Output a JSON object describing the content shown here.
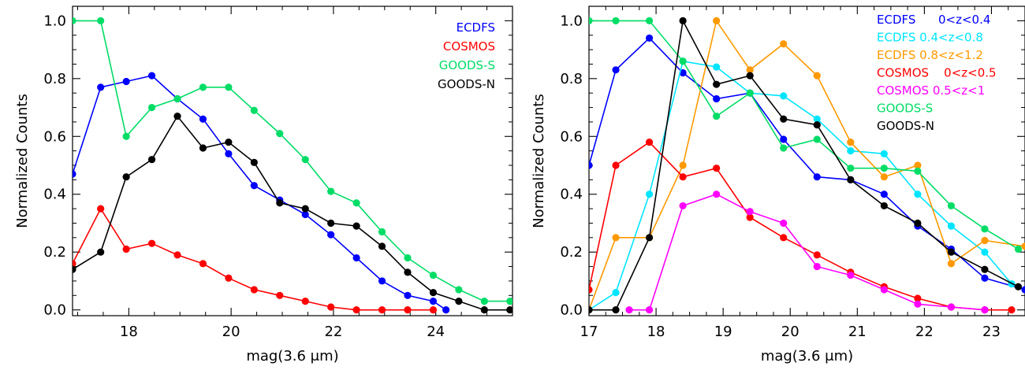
{
  "chart_data": [
    {
      "type": "line",
      "xlabel": "mag(3.6 μm)",
      "ylabel": "Normalized Counts",
      "xlim": [
        16.9,
        25.5
      ],
      "ylim": [
        -0.02,
        1.05
      ],
      "xticks": [
        18,
        20,
        22,
        24
      ],
      "xtick_labels": [
        "18",
        "20",
        "22",
        "24"
      ],
      "yticks": [
        0.0,
        0.2,
        0.4,
        0.6,
        0.8,
        1.0
      ],
      "ytick_labels": [
        "0.0",
        "0.2",
        "0.4",
        "0.6",
        "0.8",
        "1.0"
      ],
      "grid": false,
      "legend_position": "top-right",
      "series": [
        {
          "name": "ECDFS",
          "color": "#0000ff",
          "x": [
            16.9,
            17.45,
            17.95,
            18.45,
            18.95,
            19.45,
            19.95,
            20.45,
            20.95,
            21.45,
            21.95,
            22.45,
            22.95,
            23.45,
            23.95,
            24.2
          ],
          "y": [
            0.47,
            0.77,
            0.79,
            0.81,
            0.73,
            0.66,
            0.54,
            0.43,
            0.38,
            0.33,
            0.26,
            0.18,
            0.1,
            0.05,
            0.03,
            0.0
          ]
        },
        {
          "name": "COSMOS",
          "color": "#ff0000",
          "x": [
            16.9,
            17.45,
            17.95,
            18.45,
            18.95,
            19.45,
            19.95,
            20.45,
            20.95,
            21.45,
            21.95,
            22.45,
            22.95,
            23.45,
            23.95
          ],
          "y": [
            0.16,
            0.35,
            0.21,
            0.23,
            0.19,
            0.16,
            0.11,
            0.07,
            0.05,
            0.03,
            0.01,
            0.0,
            0.0,
            0.0,
            0.0
          ]
        },
        {
          "name": "GOODS-S",
          "color": "#00dd66",
          "x": [
            16.9,
            17.45,
            17.95,
            18.45,
            18.95,
            19.45,
            19.95,
            20.45,
            20.95,
            21.45,
            21.95,
            22.45,
            22.95,
            23.45,
            23.95,
            24.45,
            24.95,
            25.45
          ],
          "y": [
            1.0,
            1.0,
            0.6,
            0.7,
            0.73,
            0.77,
            0.77,
            0.69,
            0.61,
            0.52,
            0.41,
            0.37,
            0.27,
            0.18,
            0.12,
            0.07,
            0.03,
            0.03
          ]
        },
        {
          "name": "GOODS-N",
          "color": "#000000",
          "x": [
            16.9,
            17.45,
            17.95,
            18.45,
            18.95,
            19.45,
            19.95,
            20.45,
            20.95,
            21.45,
            21.95,
            22.45,
            22.95,
            23.45,
            23.95,
            24.45,
            24.95,
            25.45
          ],
          "y": [
            0.14,
            0.2,
            0.46,
            0.52,
            0.67,
            0.56,
            0.58,
            0.51,
            0.37,
            0.35,
            0.3,
            0.29,
            0.22,
            0.13,
            0.06,
            0.03,
            0.0,
            0.0
          ]
        }
      ]
    },
    {
      "type": "line",
      "xlabel": "mag(3.6 μm)",
      "ylabel": "Normalized Counts",
      "xlim": [
        17.0,
        23.5
      ],
      "ylim": [
        -0.02,
        1.05
      ],
      "xticks": [
        17,
        18,
        19,
        20,
        21,
        22,
        23
      ],
      "xtick_labels": [
        "17",
        "18",
        "19",
        "20",
        "21",
        "22",
        "23"
      ],
      "yticks": [
        0.0,
        0.2,
        0.4,
        0.6,
        0.8,
        1.0
      ],
      "ytick_labels": [
        "0.0",
        "0.2",
        "0.4",
        "0.6",
        "0.8",
        "1.0"
      ],
      "grid": false,
      "legend_position": "top-right",
      "series": [
        {
          "name": "ECDFS      0<z<0.4",
          "color": "#0000ff",
          "x": [
            17.0,
            17.4,
            17.9,
            18.4,
            18.9,
            19.4,
            19.9,
            20.4,
            20.9,
            21.4,
            21.9,
            22.4,
            22.9,
            23.5
          ],
          "y": [
            0.5,
            0.83,
            0.94,
            0.82,
            0.73,
            0.75,
            0.59,
            0.46,
            0.45,
            0.4,
            0.29,
            0.21,
            0.11,
            0.07
          ]
        },
        {
          "name": "ECDFS 0.4<z<0.8",
          "color": "#00e5ff",
          "x": [
            17.0,
            17.4,
            17.9,
            18.4,
            18.9,
            19.4,
            19.9,
            20.4,
            20.9,
            21.4,
            21.9,
            22.4,
            22.9,
            23.3
          ],
          "y": [
            0.0,
            0.06,
            0.4,
            0.86,
            0.84,
            0.75,
            0.74,
            0.66,
            0.55,
            0.54,
            0.4,
            0.29,
            0.2,
            0.09
          ]
        },
        {
          "name": "ECDFS 0.8<z<1.2",
          "color": "#ff9900",
          "x": [
            17.0,
            17.4,
            17.9,
            18.4,
            18.9,
            19.4,
            19.9,
            20.4,
            20.9,
            21.4,
            21.9,
            22.4,
            22.9,
            23.5
          ],
          "y": [
            0.0,
            0.25,
            0.25,
            0.5,
            1.0,
            0.83,
            0.92,
            0.81,
            0.58,
            0.46,
            0.5,
            0.16,
            0.24,
            0.22
          ]
        },
        {
          "name": "COSMOS    0<z<0.5",
          "color": "#ff0000",
          "x": [
            17.0,
            17.4,
            17.9,
            18.4,
            18.9,
            19.4,
            19.9,
            20.4,
            20.9,
            21.4,
            21.9,
            22.4,
            22.9,
            23.3
          ],
          "y": [
            0.07,
            0.5,
            0.58,
            0.46,
            0.49,
            0.32,
            0.25,
            0.19,
            0.13,
            0.08,
            0.04,
            0.01,
            0.0,
            0.0
          ]
        },
        {
          "name": "COSMOS 0.5<z<1",
          "color": "#ff00ff",
          "x": [
            17.6,
            17.9,
            18.4,
            18.9,
            19.4,
            19.9,
            20.4,
            20.9,
            21.4,
            21.9,
            22.4,
            22.9
          ],
          "y": [
            0.0,
            0.0,
            0.36,
            0.4,
            0.34,
            0.3,
            0.15,
            0.12,
            0.07,
            0.02,
            0.01,
            0.0
          ]
        },
        {
          "name": "GOODS-S",
          "color": "#00dd66",
          "x": [
            17.0,
            17.4,
            17.9,
            18.4,
            18.9,
            19.4,
            19.9,
            20.4,
            20.9,
            21.4,
            21.9,
            22.4,
            22.9,
            23.4
          ],
          "y": [
            1.0,
            1.0,
            1.0,
            0.86,
            0.67,
            0.75,
            0.56,
            0.59,
            0.49,
            0.49,
            0.48,
            0.36,
            0.28,
            0.21
          ]
        },
        {
          "name": "GOODS-N",
          "color": "#000000",
          "x": [
            17.0,
            17.4,
            17.9,
            18.4,
            18.9,
            19.4,
            19.9,
            20.4,
            20.9,
            21.4,
            21.9,
            22.4,
            22.9,
            23.4
          ],
          "y": [
            0.0,
            0.0,
            0.25,
            1.0,
            0.78,
            0.81,
            0.66,
            0.64,
            0.45,
            0.36,
            0.3,
            0.2,
            0.14,
            0.08
          ]
        }
      ]
    }
  ]
}
